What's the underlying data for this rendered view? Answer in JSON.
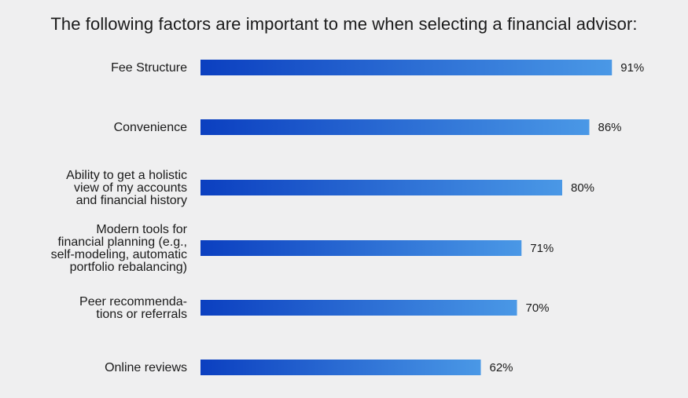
{
  "chart_data": {
    "type": "bar",
    "orientation": "horizontal",
    "title": "The following factors are important to me when selecting a financial advisor:",
    "categories": [
      [
        "Fee Structure"
      ],
      [
        "Convenience"
      ],
      [
        "Ability to get a holistic",
        "view of my accounts",
        "and financial history"
      ],
      [
        "Modern tools for",
        "financial planning (e.g.,",
        "self-modeling, automatic",
        "portfolio rebalancing)"
      ],
      [
        "Peer recommenda-",
        "tions or referrals"
      ],
      [
        "Online reviews"
      ]
    ],
    "values": [
      91,
      86,
      80,
      71,
      70,
      62
    ],
    "value_labels": [
      "91%",
      "86%",
      "80%",
      "71%",
      "70%",
      "62%"
    ],
    "xlim": [
      0,
      100
    ],
    "grid": false,
    "legend": "none",
    "colors": {
      "bar_start": "#0b3fc0",
      "bar_end": "#4a98e6",
      "background": "#efeff0",
      "text": "#1a1a1a"
    }
  }
}
